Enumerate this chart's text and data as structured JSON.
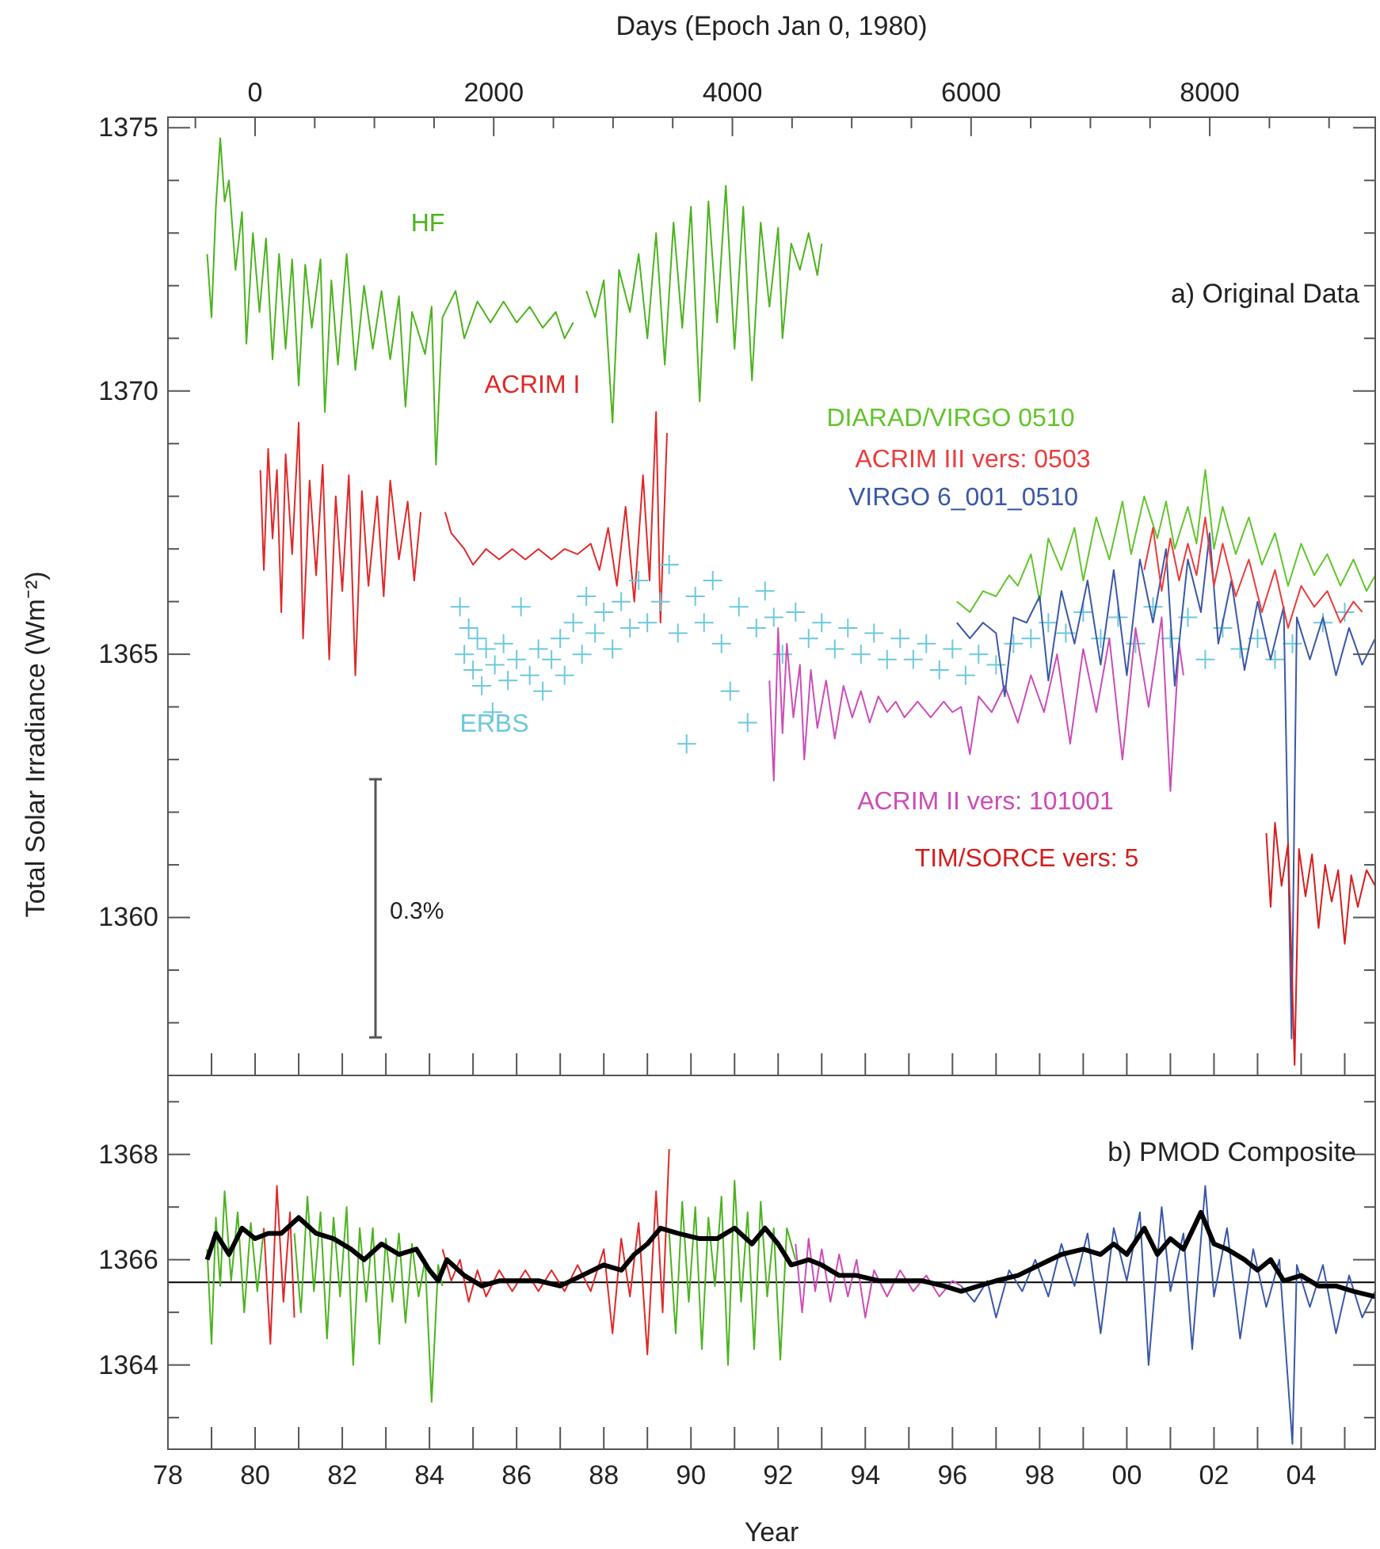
{
  "chart_data": [
    {
      "type": "line",
      "ylabel": "Total Solar Irradiance (Wm⁻²)",
      "x2label": "Days (Epoch Jan 0, 1980)",
      "xlim": [
        1978,
        2005.7
      ],
      "ylim": [
        1357,
        1375.2
      ],
      "x2lim": [
        -730,
        9387
      ],
      "tick_labels": "y",
      "grid": false,
      "legend": false,
      "xticks": [
        {
          "value": 1978,
          "label": null
        },
        {
          "value": 1979,
          "label": null
        },
        {
          "value": 1980,
          "label": null
        },
        {
          "value": 1981,
          "label": null
        },
        {
          "value": 1982,
          "label": null
        },
        {
          "value": 1983,
          "label": null
        },
        {
          "value": 1984,
          "label": null
        },
        {
          "value": 1985,
          "label": null
        },
        {
          "value": 1986,
          "label": null
        },
        {
          "value": 1987,
          "label": null
        },
        {
          "value": 1988,
          "label": null
        },
        {
          "value": 1989,
          "label": null
        },
        {
          "value": 1990,
          "label": null
        },
        {
          "value": 1991,
          "label": null
        },
        {
          "value": 1992,
          "label": null
        },
        {
          "value": 1993,
          "label": null
        },
        {
          "value": 1994,
          "label": null
        },
        {
          "value": 1995,
          "label": null
        },
        {
          "value": 1996,
          "label": null
        },
        {
          "value": 1997,
          "label": null
        },
        {
          "value": 1998,
          "label": null
        },
        {
          "value": 1999,
          "label": null
        },
        {
          "value": 2000,
          "label": null
        },
        {
          "value": 2001,
          "label": null
        },
        {
          "value": 2002,
          "label": null
        },
        {
          "value": 2003,
          "label": null
        },
        {
          "value": 2004,
          "label": null
        },
        {
          "value": 2005,
          "label": null
        }
      ],
      "x2ticks": [
        {
          "value": -500,
          "label": null
        },
        0,
        {
          "value": 500,
          "label": null
        },
        {
          "value": 1000,
          "label": null
        },
        {
          "value": 1500,
          "label": null
        },
        2000,
        {
          "value": 2500,
          "label": null
        },
        {
          "value": 3000,
          "label": null
        },
        {
          "value": 3500,
          "label": null
        },
        4000,
        {
          "value": 4500,
          "label": null
        },
        {
          "value": 5000,
          "label": null
        },
        {
          "value": 5500,
          "label": null
        },
        6000,
        {
          "value": 6500,
          "label": null
        },
        {
          "value": 7000,
          "label": null
        },
        {
          "value": 7500,
          "label": null
        },
        8000,
        {
          "value": 8500,
          "label": null
        },
        {
          "value": 9000,
          "label": null
        }
      ],
      "yticks": [
        {
          "value": 1358,
          "label": null
        },
        {
          "value": 1359,
          "label": null
        },
        1360,
        {
          "value": 1361,
          "label": null
        },
        {
          "value": 1362,
          "label": null
        },
        {
          "value": 1363,
          "label": null
        },
        {
          "value": 1364,
          "label": null
        },
        1365,
        {
          "value": 1366,
          "label": null
        },
        {
          "value": 1367,
          "label": null
        },
        {
          "value": 1368,
          "label": null
        },
        {
          "value": 1369,
          "label": null
        },
        1370,
        {
          "value": 1371,
          "label": null
        },
        {
          "value": 1372,
          "label": null
        },
        {
          "value": 1373,
          "label": null
        },
        {
          "value": 1374,
          "label": null
        },
        1375
      ],
      "annotations": [
        "a) Original Data",
        "0.3%"
      ],
      "series": [
        {
          "name": "HF",
          "color": "#4cb31e",
          "x": [
            1978.9,
            1979.0,
            1979.1,
            1979.2,
            1979.3,
            1979.4,
            1979.55,
            1979.7,
            1979.8,
            1979.95,
            1980.1,
            1980.25,
            1980.4,
            1980.55,
            1980.7,
            1980.85,
            1981.0,
            1981.15,
            1981.3,
            1981.5,
            1981.6,
            1981.75,
            1981.9,
            1982.1,
            1982.3,
            1982.5,
            1982.7,
            1982.9,
            1983.1,
            1983.3,
            1983.45,
            1983.6,
            1983.9,
            1984.05,
            1984.15,
            1984.3,
            1984.6,
            1984.8,
            1985.1,
            1985.4,
            1985.7,
            1986.0,
            1986.3,
            1986.6,
            1986.9,
            1987.1,
            1987.3,
            1987.45,
            1987.6,
            1987.8,
            1988.0,
            1988.2,
            1988.35,
            1988.6,
            1988.8,
            1989.0,
            1989.2,
            1989.4,
            1989.6,
            1989.8,
            1990.0,
            1990.2,
            1990.4,
            1990.6,
            1990.8,
            1991.0,
            1991.2,
            1991.4,
            1991.6,
            1991.8,
            1992.0,
            1992.1,
            1992.3,
            1992.5,
            1992.7,
            1992.9,
            1993.0
          ],
          "values": [
            1372.6,
            1371.4,
            1373.5,
            1374.8,
            1373.6,
            1374.0,
            1372.3,
            1373.4,
            1370.9,
            1373.0,
            1371.5,
            1372.9,
            1370.6,
            1372.6,
            1370.8,
            1372.5,
            1370.1,
            1372.4,
            1371.2,
            1372.5,
            1369.6,
            1372.1,
            1370.5,
            1372.6,
            1370.4,
            1372.0,
            1370.8,
            1371.9,
            1370.6,
            1371.8,
            1369.7,
            1371.5,
            1370.7,
            1371.6,
            1368.6,
            1371.4,
            1371.9,
            1371.0,
            1371.7,
            1371.3,
            1371.7,
            1371.3,
            1371.6,
            1371.2,
            1371.5,
            1371.0,
            1371.3,
            null,
            1371.9,
            1371.4,
            1372.1,
            1369.4,
            1372.3,
            1371.5,
            1372.6,
            1371.0,
            1373.0,
            1370.5,
            1373.2,
            1371.2,
            1373.5,
            1369.8,
            1373.6,
            1371.3,
            1373.9,
            1370.8,
            1373.5,
            1370.2,
            1373.2,
            1371.6,
            1373.1,
            1371.0,
            1372.8,
            1372.3,
            1373.0,
            1372.2,
            1372.8
          ]
        },
        {
          "name": "ACRIM I",
          "color": "#e02828",
          "x": [
            1980.12,
            1980.2,
            1980.3,
            1980.4,
            1980.5,
            1980.6,
            1980.7,
            1980.85,
            1981.0,
            1981.1,
            1981.25,
            1981.4,
            1981.55,
            1981.7,
            1981.85,
            1982.0,
            1982.15,
            1982.3,
            1982.45,
            1982.6,
            1982.8,
            1982.95,
            1983.1,
            1983.3,
            1983.5,
            1983.65,
            1983.8,
            1984.1,
            1984.36,
            1984.5,
            1984.8,
            1985.0,
            1985.3,
            1985.6,
            1985.9,
            1986.2,
            1986.5,
            1986.8,
            1987.1,
            1987.4,
            1987.7,
            1987.9,
            1988.1,
            1988.3,
            1988.5,
            1988.7,
            1988.9,
            1989.05,
            1989.2,
            1989.3,
            1989.45
          ],
          "values": [
            1368.5,
            1366.6,
            1368.9,
            1367.2,
            1368.5,
            1365.8,
            1368.8,
            1366.9,
            1369.4,
            1365.3,
            1368.3,
            1366.5,
            1368.6,
            1364.9,
            1368.0,
            1366.2,
            1368.4,
            1364.6,
            1368.1,
            1366.3,
            1368.0,
            1366.1,
            1368.3,
            1366.8,
            1367.9,
            1366.4,
            1367.7,
            null,
            1367.7,
            1367.3,
            1367.0,
            1366.7,
            1367.0,
            1366.8,
            1367.0,
            1366.8,
            1367.0,
            1366.8,
            1367.0,
            1366.9,
            1367.1,
            1366.6,
            1367.4,
            1366.3,
            1367.8,
            1366.0,
            1368.4,
            1366.4,
            1369.6,
            1365.6,
            1369.2
          ]
        },
        {
          "type": "scatter",
          "name": "ERBS",
          "color": "#6cc8dc",
          "marker": "cross",
          "x": [
            1984.7,
            1984.8,
            1984.9,
            1985.0,
            1985.1,
            1985.2,
            1985.3,
            1985.45,
            1985.5,
            1985.7,
            1985.8,
            1986.0,
            1986.1,
            1986.3,
            1986.5,
            1986.6,
            1986.8,
            1987.0,
            1987.1,
            1987.3,
            1987.5,
            1987.6,
            1987.8,
            1988.0,
            1988.2,
            1988.4,
            1988.6,
            1988.8,
            1989.0,
            1989.3,
            1989.5,
            1989.7,
            1989.9,
            1990.1,
            1990.3,
            1990.5,
            1990.7,
            1990.9,
            1991.1,
            1991.3,
            1991.5,
            1991.7,
            1991.9,
            1992.1,
            1992.4,
            1992.7,
            1993.0,
            1993.3,
            1993.6,
            1993.9,
            1994.2,
            1994.5,
            1994.8,
            1995.1,
            1995.4,
            1995.7,
            1996.0,
            1996.3,
            1996.6,
            1997.0,
            1997.4,
            1997.8,
            1998.2,
            1998.6,
            1999.0,
            1999.4,
            1999.8,
            2000.2,
            2000.6,
            2001.0,
            2001.4,
            2001.8,
            2002.2,
            2002.6,
            2003.0,
            2003.4,
            2003.8,
            2004.5,
            2005.0
          ],
          "values": [
            1365.9,
            1365.0,
            1365.5,
            1364.7,
            1365.3,
            1364.4,
            1365.1,
            1363.9,
            1364.8,
            1365.2,
            1364.5,
            1364.9,
            1365.9,
            1364.6,
            1365.1,
            1364.3,
            1364.9,
            1365.3,
            1364.6,
            1365.6,
            1365.0,
            1366.1,
            1365.4,
            1365.8,
            1365.1,
            1366.0,
            1365.5,
            1366.4,
            1365.6,
            1366.0,
            1366.7,
            1365.4,
            1363.3,
            1366.1,
            1365.6,
            1366.4,
            1365.2,
            1364.3,
            1365.9,
            1363.7,
            1365.5,
            1366.2,
            1365.7,
            1365.0,
            1365.8,
            1365.3,
            1365.6,
            1365.1,
            1365.5,
            1365.0,
            1365.4,
            1364.9,
            1365.3,
            1364.9,
            1365.2,
            1364.7,
            1365.1,
            1364.6,
            1365.0,
            1364.8,
            1365.2,
            1365.3,
            1365.6,
            1365.4,
            1365.8,
            1365.3,
            1365.7,
            1365.2,
            1365.9,
            1365.3,
            1365.7,
            1364.9,
            1365.5,
            1365.1,
            1365.3,
            1364.9,
            1365.2,
            1365.6,
            1365.8
          ]
        },
        {
          "name": "ACRIM II vers: 101001",
          "color": "#cc4cb8",
          "x": [
            1991.8,
            1991.9,
            1992.0,
            1992.1,
            1992.2,
            1992.35,
            1992.5,
            1992.6,
            1992.75,
            1992.9,
            1993.1,
            1993.3,
            1993.5,
            1993.7,
            1993.9,
            1994.1,
            1994.3,
            1994.5,
            1994.7,
            1994.9,
            1995.2,
            1995.5,
            1995.8,
            1996.0,
            1996.2,
            1996.4,
            1996.6,
            1996.9,
            1997.2,
            1997.5,
            1997.8,
            1998.1,
            1998.4,
            1998.7,
            1999.0,
            1999.3,
            1999.6,
            1999.9,
            2000.2,
            2000.5,
            2000.8,
            2001.0,
            2001.2,
            2001.3
          ],
          "values": [
            1364.5,
            1362.6,
            1365.5,
            1363.5,
            1365.2,
            1363.8,
            1364.8,
            1363.0,
            1364.7,
            1363.6,
            1364.5,
            1363.4,
            1364.4,
            1363.8,
            1364.3,
            1363.7,
            1364.2,
            1363.9,
            1364.1,
            1363.8,
            1364.1,
            1363.8,
            1364.1,
            1363.9,
            1364.0,
            1363.1,
            1364.2,
            1363.9,
            1364.4,
            1363.7,
            1364.6,
            1363.9,
            1365.0,
            1363.3,
            1365.1,
            1363.9,
            1365.3,
            1363.0,
            1365.5,
            1364.0,
            1365.7,
            1362.4,
            1365.2,
            1364.6
          ]
        },
        {
          "name": "DIARAD/VIRGO 0510",
          "color": "#62c42c",
          "x": [
            1996.1,
            1996.4,
            1996.7,
            1997.0,
            1997.3,
            1997.5,
            1997.8,
            1998.0,
            1998.2,
            1998.5,
            1998.8,
            1999.0,
            1999.3,
            1999.6,
            1999.9,
            2000.1,
            2000.4,
            2000.7,
            2000.9,
            2001.1,
            2001.4,
            2001.6,
            2001.8,
            2002.0,
            2002.2,
            2002.5,
            2002.8,
            2003.1,
            2003.4,
            2003.7,
            2004.0,
            2004.3,
            2004.6,
            2004.9,
            2005.2,
            2005.5,
            2005.7
          ],
          "values": [
            1366.0,
            1365.8,
            1366.2,
            1366.1,
            1366.5,
            1366.3,
            1366.9,
            1366.0,
            1367.2,
            1366.6,
            1367.4,
            1366.4,
            1367.6,
            1366.8,
            1367.9,
            1366.9,
            1368.0,
            1367.2,
            1367.9,
            1367.0,
            1367.8,
            1367.1,
            1368.5,
            1367.0,
            1367.8,
            1366.9,
            1367.6,
            1366.7,
            1367.3,
            1366.3,
            1367.1,
            1366.5,
            1366.9,
            1366.3,
            1366.8,
            1366.2,
            1366.5
          ]
        },
        {
          "name": "VIRGO 6_001_0510",
          "color": "#3a58a8",
          "x": [
            1996.1,
            1996.4,
            1996.7,
            1997.0,
            1997.2,
            1997.4,
            1997.7,
            1998.0,
            1998.2,
            1998.5,
            1998.8,
            1999.1,
            1999.4,
            1999.7,
            2000.0,
            2000.3,
            2000.6,
            2000.9,
            2001.1,
            2001.4,
            2001.7,
            2001.9,
            2002.1,
            2002.4,
            2002.7,
            2003.0,
            2003.3,
            2003.6,
            2003.78,
            2003.9,
            2004.2,
            2004.5,
            2004.8,
            2005.1,
            2005.4,
            2005.7
          ],
          "values": [
            1365.6,
            1365.3,
            1365.6,
            1365.4,
            1364.2,
            1365.7,
            1365.6,
            1366.1,
            1364.5,
            1366.2,
            1365.2,
            1366.4,
            1364.8,
            1366.6,
            1364.6,
            1366.8,
            1365.6,
            1367.0,
            1364.4,
            1366.8,
            1365.8,
            1367.3,
            1365.2,
            1366.4,
            1364.7,
            1366.0,
            1364.9,
            1365.9,
            1357.7,
            1365.7,
            1364.9,
            1365.7,
            1364.6,
            1365.5,
            1364.8,
            1365.3
          ]
        },
        {
          "name": "ACRIM III vers: 0503",
          "color": "#ea3c3c",
          "x": [
            2000.4,
            2000.6,
            2000.8,
            2001.0,
            2001.2,
            2001.4,
            2001.6,
            2001.8,
            2002.0,
            2002.2,
            2002.5,
            2002.8,
            2003.1,
            2003.4,
            2003.7,
            2004.0,
            2004.3,
            2004.6,
            2004.9,
            2005.2,
            2005.4
          ],
          "values": [
            1366.6,
            1367.4,
            1366.2,
            1367.2,
            1366.4,
            1367.1,
            1366.5,
            1367.6,
            1366.3,
            1367.1,
            1366.1,
            1366.8,
            1365.8,
            1366.6,
            1365.5,
            1366.3,
            1365.9,
            1366.2,
            1365.6,
            1366.0,
            1365.8
          ]
        },
        {
          "name": "TIM/SORCE vers: 5",
          "color": "#d41e1e",
          "x": [
            2003.2,
            2003.3,
            2003.4,
            2003.55,
            2003.7,
            2003.85,
            2003.95,
            2004.1,
            2004.25,
            2004.4,
            2004.55,
            2004.7,
            2004.85,
            2005.0,
            2005.15,
            2005.3,
            2005.5,
            2005.7
          ],
          "values": [
            1361.6,
            1360.2,
            1361.8,
            1360.6,
            1361.4,
            1357.2,
            1361.3,
            1360.4,
            1361.2,
            1359.8,
            1361.0,
            1360.3,
            1360.9,
            1359.5,
            1360.8,
            1360.2,
            1360.9,
            1360.6
          ]
        }
      ]
    },
    {
      "type": "line",
      "xlabel": "Year",
      "xlim": [
        1978,
        2005.7
      ],
      "ylim": [
        1362.4,
        1369.5
      ],
      "grid": false,
      "legend": false,
      "xticks": [
        {
          "value": 1978,
          "label": "78"
        },
        {
          "value": 1979,
          "label": null
        },
        {
          "value": 1980,
          "label": "80"
        },
        {
          "value": 1981,
          "label": null
        },
        {
          "value": 1982,
          "label": "82"
        },
        {
          "value": 1983,
          "label": null
        },
        {
          "value": 1984,
          "label": "84"
        },
        {
          "value": 1985,
          "label": null
        },
        {
          "value": 1986,
          "label": "86"
        },
        {
          "value": 1987,
          "label": null
        },
        {
          "value": 1988,
          "label": "88"
        },
        {
          "value": 1989,
          "label": null
        },
        {
          "value": 1990,
          "label": "90"
        },
        {
          "value": 1991,
          "label": null
        },
        {
          "value": 1992,
          "label": "92"
        },
        {
          "value": 1993,
          "label": null
        },
        {
          "value": 1994,
          "label": "94"
        },
        {
          "value": 1995,
          "label": null
        },
        {
          "value": 1996,
          "label": "96"
        },
        {
          "value": 1997,
          "label": null
        },
        {
          "value": 1998,
          "label": "98"
        },
        {
          "value": 1999,
          "label": null
        },
        {
          "value": 2000,
          "label": "00"
        },
        {
          "value": 2001,
          "label": null
        },
        {
          "value": 2002,
          "label": "02"
        },
        {
          "value": 2003,
          "label": null
        },
        {
          "value": 2004,
          "label": "04"
        },
        {
          "value": 2005,
          "label": null
        }
      ],
      "yticks": [
        {
          "value": 1363,
          "label": null
        },
        1364,
        {
          "value": 1365,
          "label": null
        },
        1366,
        {
          "value": 1367,
          "label": null
        },
        1368,
        {
          "value": 1369,
          "label": null
        }
      ],
      "annotations": [
        "b) PMOD Composite"
      ],
      "ref_lines": [
        {
          "axis": "y",
          "value": 1365.57,
          "color": "#000000"
        }
      ],
      "series": [
        {
          "color": "#4cb31e",
          "x": [
            1978.9,
            1979.0,
            1979.1,
            1979.2,
            1979.3,
            1979.45,
            1979.6,
            1979.75,
            1979.9,
            1980.05,
            1980.2
          ],
          "values": [
            1366.2,
            1364.4,
            1366.8,
            1365.5,
            1367.3,
            1365.6,
            1366.9,
            1365.0,
            1366.7,
            1365.4,
            1366.6
          ]
        },
        {
          "color": "#e02828",
          "x": [
            1980.2,
            1980.35,
            1980.5,
            1980.65,
            1980.8,
            1980.9
          ],
          "values": [
            1366.6,
            1364.4,
            1367.4,
            1365.2,
            1366.9,
            1364.9
          ]
        },
        {
          "color": "#4cb31e",
          "x": [
            1980.9,
            1981.05,
            1981.2,
            1981.35,
            1981.5,
            1981.65,
            1981.8,
            1981.95,
            1982.1,
            1982.25,
            1982.4,
            1982.55,
            1982.7,
            1982.85,
            1983.0,
            1983.15,
            1983.3,
            1983.45,
            1983.6,
            1983.75,
            1983.9,
            1984.05,
            1984.2,
            1984.3
          ],
          "values": [
            1366.5,
            1365.0,
            1367.2,
            1365.4,
            1366.9,
            1364.5,
            1366.8,
            1365.3,
            1367.0,
            1364.0,
            1366.6,
            1365.2,
            1366.6,
            1364.4,
            1366.4,
            1365.2,
            1366.5,
            1364.8,
            1366.3,
            1365.3,
            1366.0,
            1363.3,
            1365.9,
            1365.5
          ]
        },
        {
          "color": "#e02828",
          "x": [
            1984.3,
            1984.5,
            1984.7,
            1984.9,
            1985.1,
            1985.3,
            1985.6,
            1985.9,
            1986.2,
            1986.5,
            1986.8,
            1987.1,
            1987.4,
            1987.7,
            1988.0,
            1988.2,
            1988.4,
            1988.6,
            1988.8,
            1989.0,
            1989.2,
            1989.35,
            1989.5
          ],
          "values": [
            1366.2,
            1365.6,
            1366.0,
            1365.2,
            1365.8,
            1365.3,
            1365.8,
            1365.4,
            1365.8,
            1365.4,
            1365.8,
            1365.4,
            1365.9,
            1365.4,
            1366.2,
            1364.6,
            1366.4,
            1365.3,
            1366.7,
            1364.2,
            1367.3,
            1365.0,
            1368.1
          ]
        },
        {
          "color": "#4cb31e",
          "x": [
            1989.5,
            1989.65,
            1989.8,
            1989.95,
            1990.1,
            1990.25,
            1990.4,
            1990.55,
            1990.7,
            1990.85,
            1991.0,
            1991.15,
            1991.3,
            1991.45,
            1991.6,
            1991.75,
            1991.9,
            1992.05,
            1992.2,
            1992.4
          ],
          "values": [
            1366.5,
            1364.6,
            1367.1,
            1365.2,
            1367.0,
            1364.3,
            1366.8,
            1365.5,
            1367.2,
            1364.0,
            1367.5,
            1365.2,
            1366.9,
            1364.3,
            1367.1,
            1365.3,
            1366.6,
            1364.1,
            1366.6,
            1366.0
          ]
        },
        {
          "color": "#cc4cb8",
          "x": [
            1992.4,
            1992.55,
            1992.7,
            1992.85,
            1993.0,
            1993.2,
            1993.4,
            1993.6,
            1993.8,
            1994.0,
            1994.2,
            1994.5,
            1994.8,
            1995.1,
            1995.4,
            1995.7,
            1996.0,
            1996.2
          ],
          "values": [
            1366.3,
            1365.0,
            1366.4,
            1365.4,
            1366.2,
            1365.2,
            1366.1,
            1365.3,
            1366.0,
            1364.9,
            1365.8,
            1365.3,
            1365.8,
            1365.4,
            1365.7,
            1365.3,
            1365.6,
            1365.5
          ]
        },
        {
          "color": "#3a58a8",
          "x": [
            1996.2,
            1996.5,
            1996.8,
            1997.0,
            1997.3,
            1997.6,
            1997.9,
            1998.2,
            1998.5,
            1998.8,
            1999.1,
            1999.4,
            1999.7,
            2000.0,
            2000.3,
            2000.5,
            2000.8,
            2001.0,
            2001.3,
            2001.5,
            2001.8,
            2002.0,
            2002.3,
            2002.6,
            2002.9,
            2003.2,
            2003.5,
            2003.8,
            2003.9,
            2004.2,
            2004.5,
            2004.8,
            2005.1,
            2005.4,
            2005.7
          ],
          "values": [
            1365.5,
            1365.2,
            1365.6,
            1364.9,
            1365.8,
            1365.4,
            1366.0,
            1365.3,
            1366.3,
            1365.5,
            1366.5,
            1364.6,
            1366.6,
            1365.6,
            1366.9,
            1364.0,
            1367.0,
            1365.4,
            1366.5,
            1364.3,
            1367.4,
            1365.3,
            1366.6,
            1364.5,
            1366.2,
            1365.1,
            1366.0,
            1362.5,
            1365.9,
            1365.1,
            1365.9,
            1364.6,
            1365.7,
            1364.9,
            1365.4
          ]
        },
        {
          "color": "#000000",
          "x": [
            1978.9,
            1979.1,
            1979.4,
            1979.7,
            1980.0,
            1980.3,
            1980.6,
            1981.0,
            1981.4,
            1981.8,
            1982.2,
            1982.5,
            1982.9,
            1983.3,
            1983.7,
            1984.0,
            1984.2,
            1984.4,
            1984.8,
            1985.2,
            1985.6,
            1986.0,
            1986.5,
            1987.0,
            1987.5,
            1988.0,
            1988.4,
            1988.7,
            1989.0,
            1989.3,
            1989.7,
            1990.2,
            1990.6,
            1991.0,
            1991.4,
            1991.7,
            1992.0,
            1992.3,
            1992.7,
            1993.0,
            1993.4,
            1993.8,
            1994.3,
            1994.8,
            1995.3,
            1995.8,
            1996.2,
            1996.6,
            1997.0,
            1997.5,
            1998.0,
            1998.5,
            1999.0,
            1999.4,
            1999.7,
            2000.0,
            2000.4,
            2000.7,
            2001.0,
            2001.3,
            2001.7,
            2002.0,
            2002.3,
            2002.7,
            2003.0,
            2003.3,
            2003.6,
            2004.0,
            2004.4,
            2004.8,
            2005.2,
            2005.7
          ],
          "values": [
            1366.0,
            1366.5,
            1366.1,
            1366.6,
            1366.4,
            1366.5,
            1366.5,
            1366.8,
            1366.5,
            1366.4,
            1366.2,
            1366.0,
            1366.3,
            1366.1,
            1366.2,
            1365.8,
            1365.6,
            1366.0,
            1365.7,
            1365.5,
            1365.6,
            1365.6,
            1365.6,
            1365.5,
            1365.7,
            1365.9,
            1365.8,
            1366.1,
            1366.3,
            1366.6,
            1366.5,
            1366.4,
            1366.4,
            1366.6,
            1366.3,
            1366.6,
            1366.3,
            1365.9,
            1366.0,
            1365.9,
            1365.7,
            1365.7,
            1365.6,
            1365.6,
            1365.6,
            1365.5,
            1365.4,
            1365.5,
            1365.6,
            1365.7,
            1365.9,
            1366.1,
            1366.2,
            1366.1,
            1366.3,
            1366.1,
            1366.6,
            1366.1,
            1366.4,
            1366.2,
            1366.9,
            1366.3,
            1366.2,
            1366.0,
            1365.8,
            1366.0,
            1365.6,
            1365.7,
            1365.5,
            1365.5,
            1365.4,
            1365.3
          ]
        }
      ]
    }
  ]
}
